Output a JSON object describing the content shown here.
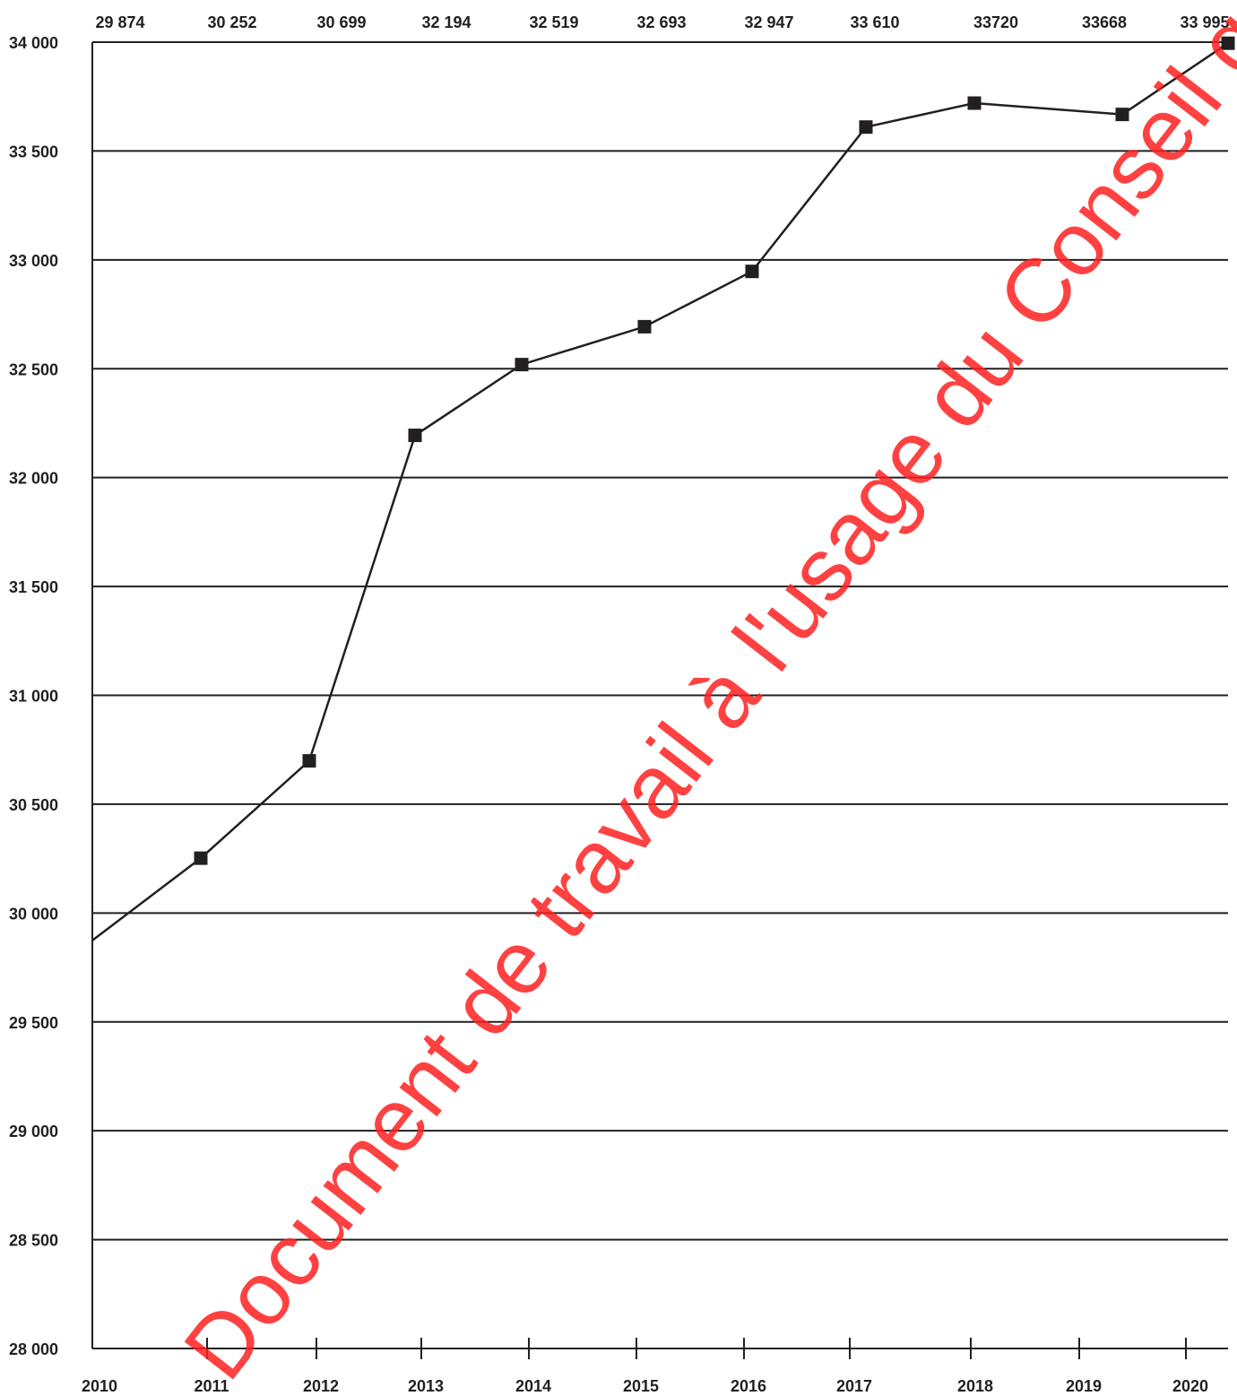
{
  "chart_data": {
    "type": "line",
    "title": "",
    "xlabel": "",
    "ylabel": "",
    "categories": [
      "2010",
      "2011",
      "2012",
      "2013",
      "2014",
      "2015",
      "2016",
      "2017",
      "2018",
      "2019",
      "2020"
    ],
    "series": [
      {
        "values": [
          29874,
          30252,
          30699,
          32194,
          32519,
          32693,
          32947,
          33610,
          33720,
          33668,
          33995
        ]
      }
    ],
    "top_labels": [
      "29 874",
      "30 252",
      "30 699",
      "32 194",
      "32 519",
      "32 693",
      "32 947",
      "33 610",
      "33720",
      "33668",
      "33 995"
    ],
    "y_ticks": [
      28000,
      28500,
      29000,
      29500,
      30000,
      30500,
      31000,
      31500,
      32000,
      32500,
      33000,
      33500,
      34000
    ],
    "y_tick_labels": [
      "28 000",
      "28 500",
      "29 000",
      "29 500",
      "30 000",
      "30 500",
      "31 000",
      "31 500",
      "32 000",
      "32 500",
      "33 000",
      "33 500",
      "34 000"
    ],
    "ylim": [
      28000,
      34000
    ],
    "grid": true,
    "legend": "none",
    "line_color": "#231f20",
    "marker": "square"
  },
  "watermark": {
    "text": "Document de travail à l'usage du Conseil général",
    "color": "#ff2020"
  }
}
